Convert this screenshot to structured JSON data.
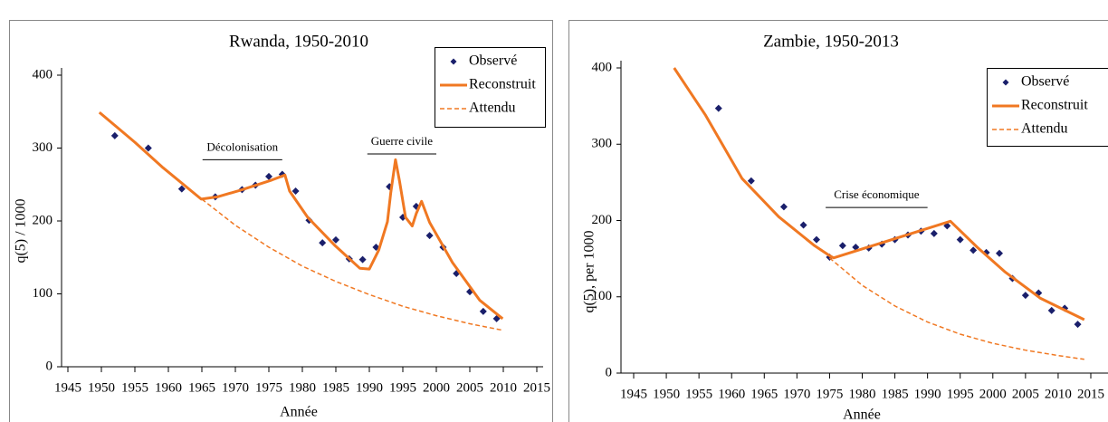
{
  "chart_data": [
    {
      "type": "line",
      "title": "Rwanda, 1950-2010",
      "x_label": "Année",
      "y_label": "q(5) / 1000",
      "xlim": [
        1945,
        2015
      ],
      "xticks": [
        1945,
        1950,
        1955,
        1960,
        1965,
        1970,
        1975,
        1980,
        1985,
        1990,
        1995,
        2000,
        2005,
        2010,
        2015
      ],
      "ylim": [
        0,
        400
      ],
      "yticks": [
        0,
        100,
        200,
        300,
        400
      ],
      "grid": false,
      "legend": "upper right",
      "series": [
        {
          "name": "Observé",
          "color": "#1a1f6b",
          "style": "markers",
          "x": [
            1952,
            1957,
            1962,
            1967,
            1971,
            1973,
            1975,
            1977,
            1979,
            1981,
            1983,
            1985,
            1987,
            1989,
            1991,
            1993,
            1995,
            1997,
            1999,
            2001,
            2003,
            2005,
            2007,
            2009
          ],
          "values": [
            317,
            300,
            244,
            233,
            243,
            249,
            261,
            264,
            241,
            201,
            170,
            174,
            148,
            147,
            164,
            247,
            205,
            220,
            180,
            164,
            128,
            103,
            76,
            66
          ]
        },
        {
          "name": "Reconstruit",
          "color": "#f07822",
          "style": "solid",
          "x": [
            1949.7,
            1955,
            1959.2,
            1964.9,
            1967.3,
            1970.7,
            1975.4,
            1977.4,
            1978.1,
            1980.8,
            1984.9,
            1988.6,
            1990,
            1991.4,
            1992.7,
            1993.2,
            1993.9,
            1994.5,
            1995.4,
            1996.4,
            1997,
            1997.8,
            1999,
            2002.4,
            2006.5,
            2009.9
          ],
          "values": [
            349,
            308,
            273,
            230,
            233,
            242,
            256,
            263,
            241,
            205,
            166,
            135,
            134,
            160,
            199,
            239,
            284,
            255,
            205,
            193,
            210,
            227,
            198,
            143,
            91,
            66
          ]
        },
        {
          "name": "Attendu",
          "color": "#f07822",
          "style": "dashed",
          "x": [
            1965,
            1970,
            1975,
            1980,
            1985,
            1990,
            1995,
            2000,
            2005,
            2010
          ],
          "values": [
            230,
            194,
            164,
            138,
            117,
            99,
            83,
            70,
            59,
            50
          ]
        }
      ],
      "annotations": [
        {
          "text": "Décolonisation",
          "x": [
            1965.1,
            1977
          ],
          "y": 284
        },
        {
          "text": "Guerre civile",
          "x": [
            1989.7,
            2000
          ],
          "y": 292
        }
      ]
    },
    {
      "type": "line",
      "title": "Zambie, 1950-2013",
      "x_label": "Année",
      "y_label": "q(5), per 1000",
      "xlim": [
        1945,
        2015
      ],
      "xticks": [
        1945,
        1950,
        1955,
        1960,
        1965,
        1970,
        1975,
        1980,
        1985,
        1990,
        1995,
        2000,
        2005,
        2010,
        2015
      ],
      "ylim": [
        0,
        400
      ],
      "yticks": [
        0,
        100,
        200,
        300,
        400
      ],
      "grid": false,
      "legend": "upper right",
      "series": [
        {
          "name": "Observé",
          "color": "#1a1f6b",
          "style": "markers",
          "x": [
            1958,
            1963,
            1968,
            1971,
            1973,
            1975,
            1977,
            1979,
            1981,
            1983,
            1985,
            1987,
            1989,
            1991,
            1993,
            1995,
            1997,
            1999,
            2001,
            2003,
            2005,
            2007,
            2009,
            2011,
            2013
          ],
          "values": [
            347,
            252,
            218,
            194,
            175,
            152,
            167,
            165,
            164,
            169,
            175,
            181,
            186,
            183,
            193,
            175,
            161,
            158,
            157,
            124,
            102,
            105,
            82,
            85,
            64
          ]
        },
        {
          "name": "Reconstruit",
          "color": "#f07822",
          "style": "solid",
          "x": [
            1951.2,
            1956,
            1961.6,
            1967.2,
            1972.7,
            1974.8,
            1975.6,
            1993.5,
            1997.6,
            2001.8,
            2007.3,
            2014
          ],
          "values": [
            400,
            338,
            255,
            205,
            167,
            155,
            151,
            199,
            165,
            133,
            98,
            70
          ]
        },
        {
          "name": "Attendu",
          "color": "#f07822",
          "style": "dashed",
          "x": [
            1975,
            1980,
            1985,
            1990,
            1995,
            2000,
            2005,
            2010,
            2014
          ],
          "values": [
            151,
            115,
            88,
            67,
            51,
            39,
            30,
            23,
            18
          ]
        }
      ],
      "annotations": [
        {
          "text": "Crise économique",
          "x": [
            1974.4,
            1990
          ],
          "y": 217
        }
      ]
    }
  ]
}
